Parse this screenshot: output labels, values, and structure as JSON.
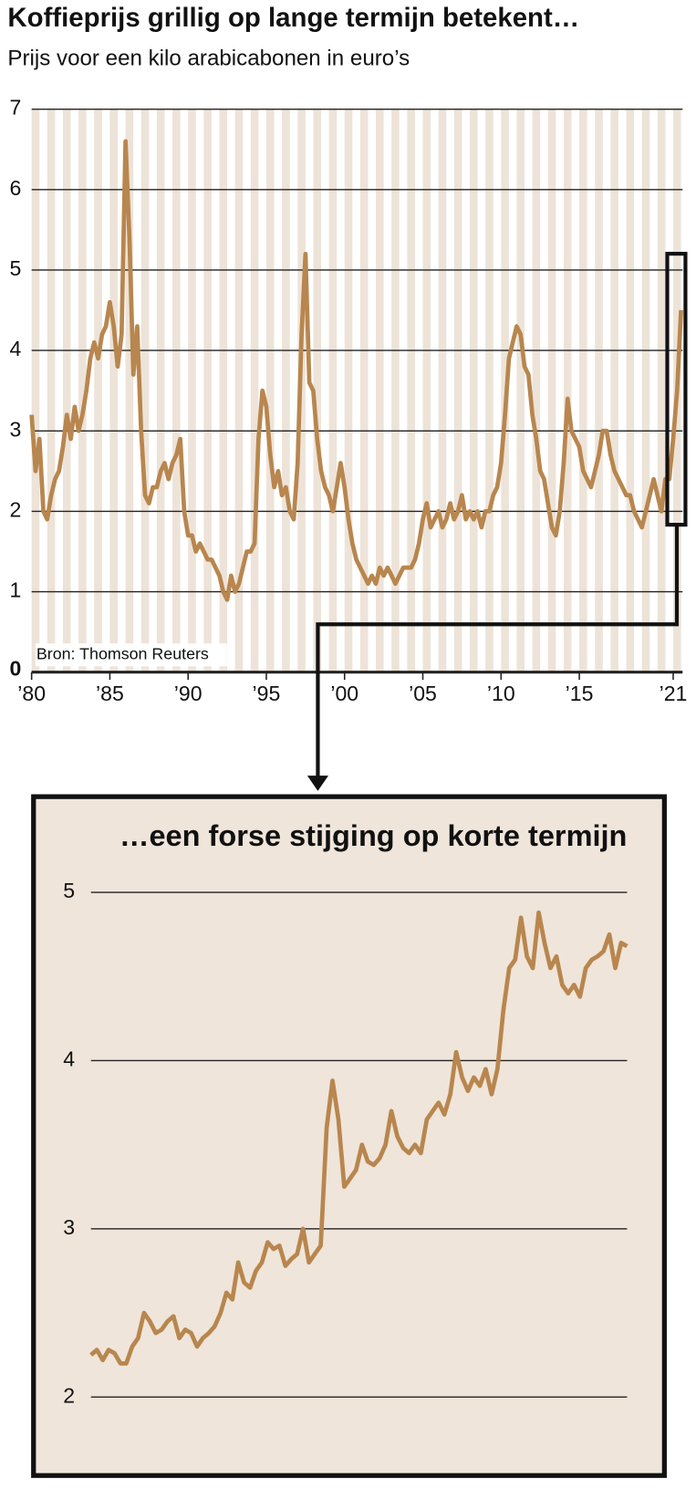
{
  "chart_data": [
    {
      "type": "line",
      "title": "Koffieprijs grillig op lange termijn betekent…",
      "subtitle": "Prijs voor een kilo arabicabonen in euro’s",
      "source": "Bron: Thomson Reuters",
      "xlim": [
        1980,
        2021.6
      ],
      "ylim": [
        0,
        7
      ],
      "yticks": [
        0,
        1,
        2,
        3,
        4,
        5,
        6,
        7
      ],
      "xticks": [
        {
          "value": 1980,
          "label": "’80"
        },
        {
          "value": 1985,
          "label": "’85"
        },
        {
          "value": 1990,
          "label": "’90"
        },
        {
          "value": 1995,
          "label": "’95"
        },
        {
          "value": 2000,
          "label": "’00"
        },
        {
          "value": 2005,
          "label": "’05"
        },
        {
          "value": 2010,
          "label": "’10"
        },
        {
          "value": 2015,
          "label": "’15"
        },
        {
          "value": 2021,
          "label": "’21"
        }
      ],
      "grid": true,
      "color": "#b8864e",
      "x": [
        1980,
        1980.25,
        1980.5,
        1980.75,
        1981,
        1981.25,
        1981.5,
        1981.75,
        1982,
        1982.25,
        1982.5,
        1982.75,
        1983,
        1983.25,
        1983.5,
        1983.75,
        1984,
        1984.25,
        1984.5,
        1984.75,
        1985,
        1985.25,
        1985.5,
        1985.75,
        1986,
        1986.25,
        1986.5,
        1986.75,
        1987,
        1987.25,
        1987.5,
        1987.75,
        1988,
        1988.25,
        1988.5,
        1988.75,
        1989,
        1989.25,
        1989.5,
        1989.75,
        1990,
        1990.25,
        1990.5,
        1990.75,
        1991,
        1991.25,
        1991.5,
        1991.75,
        1992,
        1992.25,
        1992.5,
        1992.75,
        1993,
        1993.25,
        1993.5,
        1993.75,
        1994,
        1994.25,
        1994.5,
        1994.75,
        1995,
        1995.25,
        1995.5,
        1995.75,
        1996,
        1996.25,
        1996.5,
        1996.75,
        1997,
        1997.25,
        1997.5,
        1997.75,
        1998,
        1998.25,
        1998.5,
        1998.75,
        1999,
        1999.25,
        1999.5,
        1999.75,
        2000,
        2000.25,
        2000.5,
        2000.75,
        2001,
        2001.25,
        2001.5,
        2001.75,
        2002,
        2002.25,
        2002.5,
        2002.75,
        2003,
        2003.25,
        2003.5,
        2003.75,
        2004,
        2004.25,
        2004.5,
        2004.75,
        2005,
        2005.25,
        2005.5,
        2005.75,
        2006,
        2006.25,
        2006.5,
        2006.75,
        2007,
        2007.25,
        2007.5,
        2007.75,
        2008,
        2008.25,
        2008.5,
        2008.75,
        2009,
        2009.25,
        2009.5,
        2009.75,
        2010,
        2010.25,
        2010.5,
        2010.75,
        2011,
        2011.25,
        2011.5,
        2011.75,
        2012,
        2012.25,
        2012.5,
        2012.75,
        2013,
        2013.25,
        2013.5,
        2013.75,
        2014,
        2014.25,
        2014.5,
        2014.75,
        2015,
        2015.25,
        2015.5,
        2015.75,
        2016,
        2016.25,
        2016.5,
        2016.75,
        2017,
        2017.25,
        2017.5,
        2017.75,
        2018,
        2018.25,
        2018.5,
        2018.75,
        2019,
        2019.25,
        2019.5,
        2019.75,
        2020,
        2020.25,
        2020.5,
        2020.75,
        2021,
        2021.25,
        2021.5
      ],
      "values": [
        3.2,
        2.5,
        2.9,
        2.0,
        1.9,
        2.2,
        2.4,
        2.5,
        2.8,
        3.2,
        2.9,
        3.3,
        3.0,
        3.2,
        3.5,
        3.9,
        4.1,
        3.9,
        4.2,
        4.3,
        4.6,
        4.3,
        3.8,
        4.2,
        6.6,
        5.4,
        3.7,
        4.3,
        3.0,
        2.2,
        2.1,
        2.3,
        2.3,
        2.5,
        2.6,
        2.4,
        2.6,
        2.7,
        2.9,
        2.0,
        1.7,
        1.7,
        1.5,
        1.6,
        1.5,
        1.4,
        1.4,
        1.3,
        1.2,
        1.0,
        0.9,
        1.2,
        1.0,
        1.1,
        1.3,
        1.5,
        1.5,
        1.6,
        2.9,
        3.5,
        3.3,
        2.7,
        2.3,
        2.5,
        2.2,
        2.3,
        2.0,
        1.9,
        2.6,
        4.2,
        5.2,
        3.6,
        3.5,
        2.9,
        2.5,
        2.3,
        2.2,
        2.0,
        2.3,
        2.6,
        2.3,
        1.9,
        1.6,
        1.4,
        1.3,
        1.2,
        1.1,
        1.2,
        1.1,
        1.3,
        1.2,
        1.3,
        1.2,
        1.1,
        1.2,
        1.3,
        1.3,
        1.3,
        1.4,
        1.6,
        1.9,
        2.1,
        1.8,
        1.9,
        2.0,
        1.8,
        1.9,
        2.1,
        1.9,
        2.0,
        2.2,
        1.9,
        2.0,
        1.9,
        2.0,
        1.8,
        2.0,
        2.0,
        2.2,
        2.3,
        2.6,
        3.2,
        3.9,
        4.1,
        4.3,
        4.2,
        3.8,
        3.7,
        3.2,
        2.9,
        2.5,
        2.4,
        2.1,
        1.8,
        1.7,
        2.0,
        2.6,
        3.4,
        3.0,
        2.9,
        2.8,
        2.5,
        2.4,
        2.3,
        2.5,
        2.7,
        3.0,
        3.0,
        2.7,
        2.5,
        2.4,
        2.3,
        2.2,
        2.2,
        2.0,
        1.9,
        1.8,
        2.0,
        2.2,
        2.4,
        2.2,
        2.0,
        2.4,
        2.4,
        2.9,
        3.5,
        4.5
      ]
    },
    {
      "type": "line",
      "title": "…een forse stijging op korte termijn",
      "ylim": [
        2,
        5
      ],
      "yticks": [
        2,
        3,
        4,
        5
      ],
      "grid": true,
      "color": "#b8864e",
      "values": [
        2.25,
        2.28,
        2.22,
        2.28,
        2.26,
        2.2,
        2.2,
        2.3,
        2.35,
        2.5,
        2.45,
        2.38,
        2.4,
        2.45,
        2.48,
        2.35,
        2.4,
        2.38,
        2.3,
        2.35,
        2.38,
        2.42,
        2.5,
        2.62,
        2.58,
        2.8,
        2.68,
        2.65,
        2.75,
        2.8,
        2.92,
        2.88,
        2.9,
        2.78,
        2.82,
        2.85,
        3.0,
        2.8,
        2.85,
        2.9,
        3.6,
        3.88,
        3.65,
        3.25,
        3.3,
        3.35,
        3.5,
        3.4,
        3.38,
        3.42,
        3.5,
        3.7,
        3.55,
        3.48,
        3.45,
        3.5,
        3.45,
        3.65,
        3.7,
        3.75,
        3.68,
        3.8,
        4.05,
        3.9,
        3.82,
        3.9,
        3.85,
        3.95,
        3.8,
        3.95,
        4.3,
        4.55,
        4.6,
        4.85,
        4.62,
        4.55,
        4.88,
        4.7,
        4.55,
        4.62,
        4.45,
        4.4,
        4.45,
        4.38,
        4.55,
        4.6,
        4.62,
        4.65,
        4.75,
        4.55,
        4.7,
        4.68
      ]
    }
  ]
}
